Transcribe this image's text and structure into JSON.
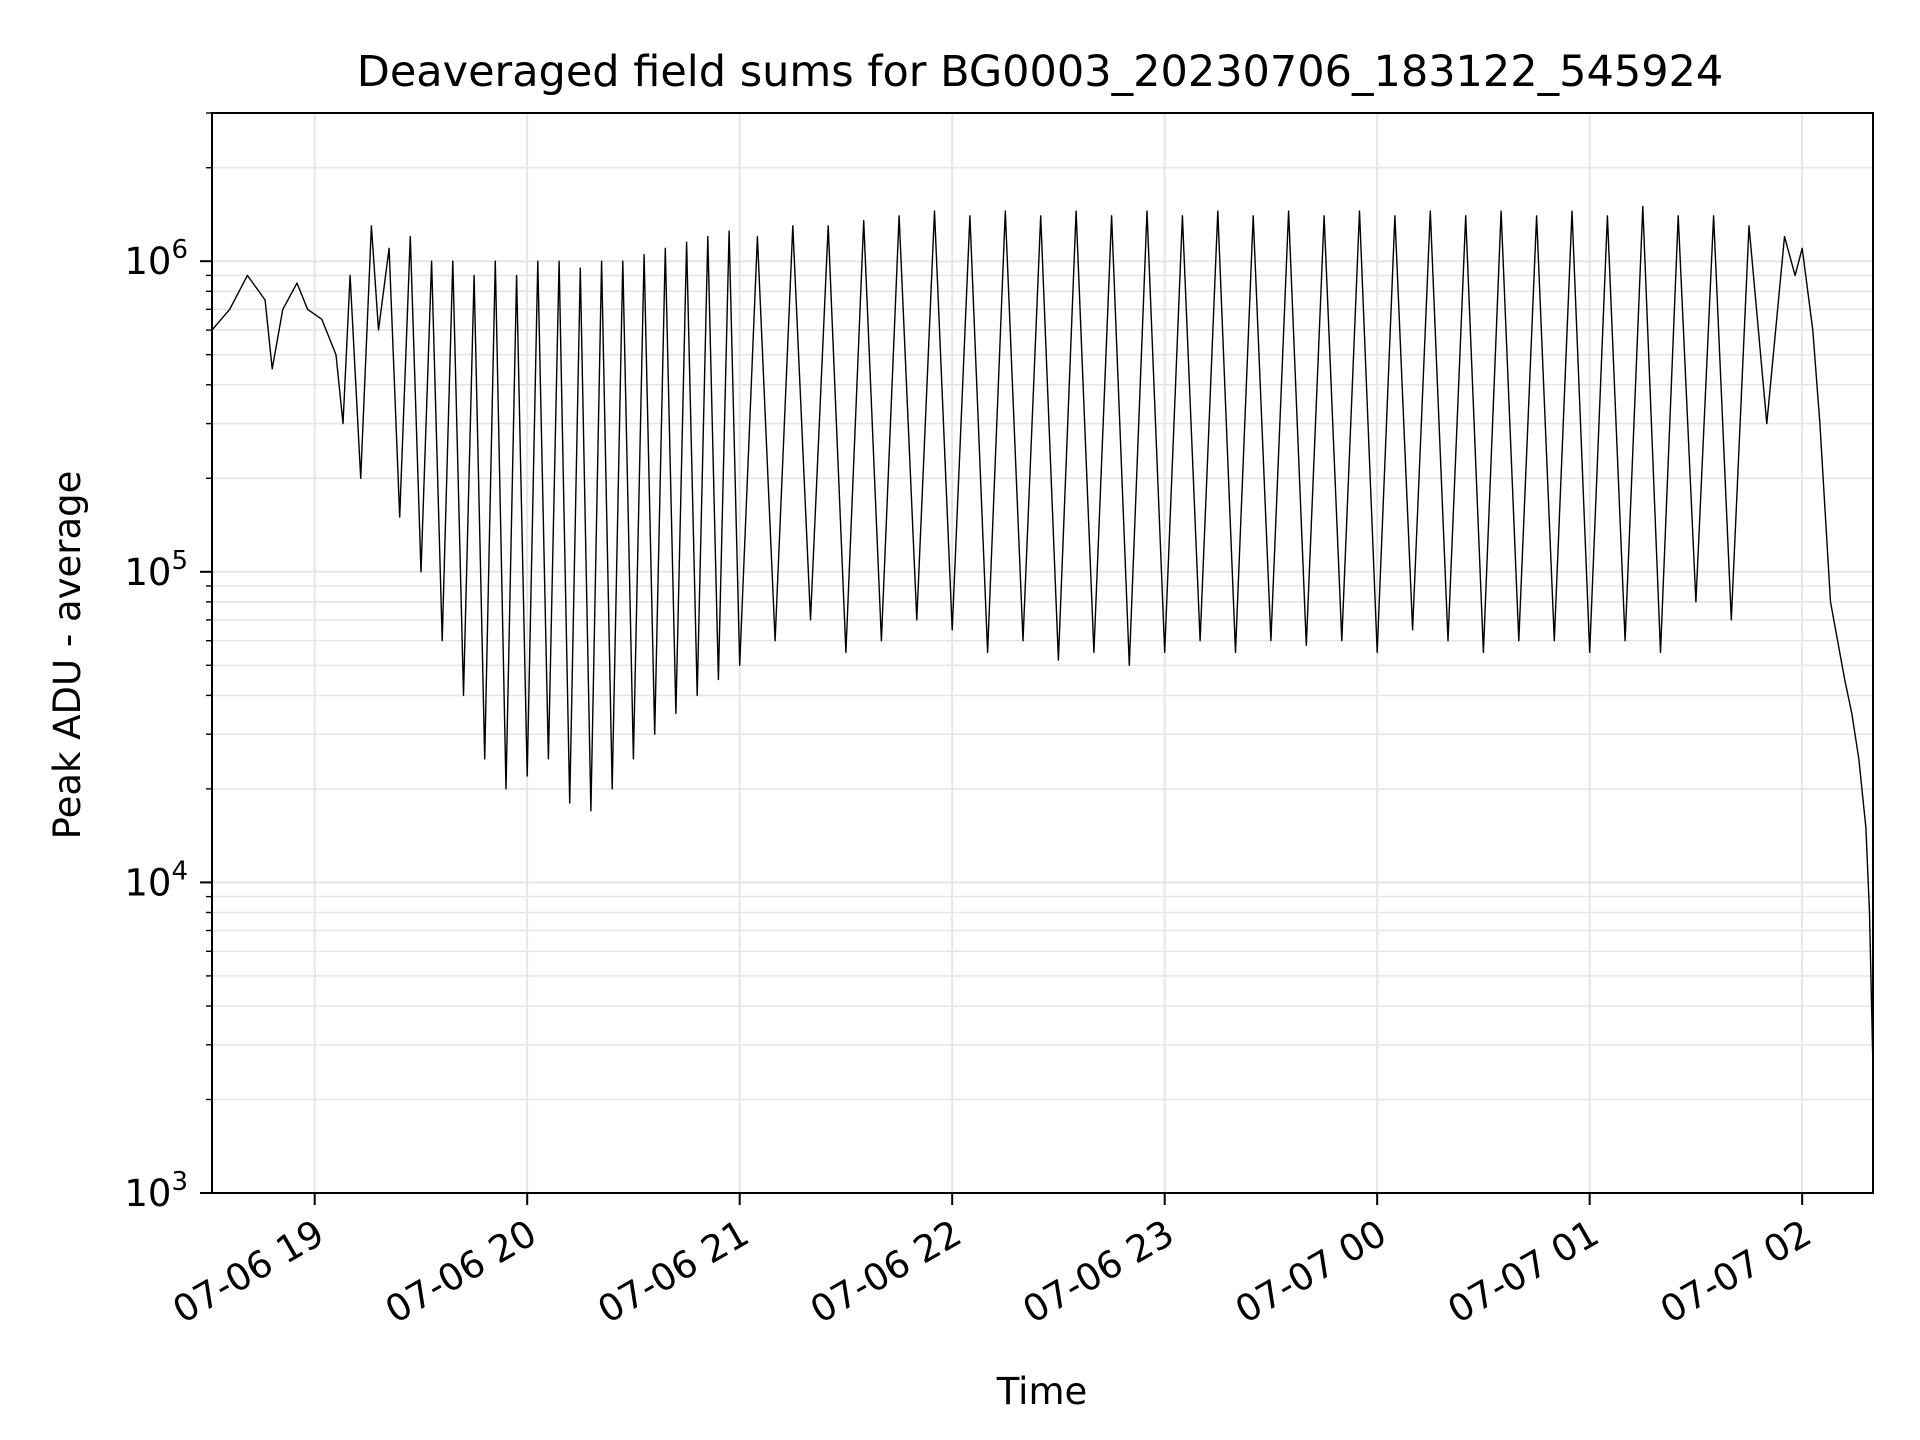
{
  "chart_data": {
    "type": "line",
    "title": "Deaveraged field sums for BG0003_20230706_183122_545924",
    "xlabel": "Time",
    "ylabel": "Peak ADU - average",
    "xscale": "time",
    "yscale": "log",
    "xlim": [
      "2023-07-06 18:31",
      "2023-07-07 02:20"
    ],
    "ylim": [
      1000,
      3000000
    ],
    "grid": true,
    "legend": "none",
    "line_color": "#000000",
    "grid_color": "#e6e6e6",
    "x_ticks": [
      {
        "label": "07-06 19",
        "value": "2023-07-06 19:00"
      },
      {
        "label": "07-06 20",
        "value": "2023-07-06 20:00"
      },
      {
        "label": "07-06 21",
        "value": "2023-07-06 21:00"
      },
      {
        "label": "07-06 22",
        "value": "2023-07-06 22:00"
      },
      {
        "label": "07-06 23",
        "value": "2023-07-06 23:00"
      },
      {
        "label": "07-07 00",
        "value": "2023-07-07 00:00"
      },
      {
        "label": "07-07 01",
        "value": "2023-07-07 01:00"
      },
      {
        "label": "07-07 02",
        "value": "2023-07-07 02:00"
      }
    ],
    "y_ticks": [
      {
        "base": "10",
        "exp": "3",
        "value": 1000
      },
      {
        "base": "10",
        "exp": "4",
        "value": 10000
      },
      {
        "base": "10",
        "exp": "5",
        "value": 100000
      },
      {
        "base": "10",
        "exp": "6",
        "value": 1000000
      }
    ],
    "series": [
      {
        "x": [
          "2023-07-06 18:31",
          "2023-07-06 18:36",
          "2023-07-06 18:41",
          "2023-07-06 18:46",
          "2023-07-06 18:48",
          "2023-07-06 18:51",
          "2023-07-06 18:55",
          "2023-07-06 18:58",
          "2023-07-06 19:02",
          "2023-07-06 19:06",
          "2023-07-06 19:08",
          "2023-07-06 19:10",
          "2023-07-06 19:13",
          "2023-07-06 19:16",
          "2023-07-06 19:18",
          "2023-07-06 19:21",
          "2023-07-06 19:24",
          "2023-07-06 19:27",
          "2023-07-06 19:30",
          "2023-07-06 19:33",
          "2023-07-06 19:36",
          "2023-07-06 19:39",
          "2023-07-06 19:42",
          "2023-07-06 19:45",
          "2023-07-06 19:48",
          "2023-07-06 19:51",
          "2023-07-06 19:54",
          "2023-07-06 19:57",
          "2023-07-06 20:00",
          "2023-07-06 20:03",
          "2023-07-06 20:06",
          "2023-07-06 20:09",
          "2023-07-06 20:12",
          "2023-07-06 20:15",
          "2023-07-06 20:18",
          "2023-07-06 20:21",
          "2023-07-06 20:24",
          "2023-07-06 20:27",
          "2023-07-06 20:30",
          "2023-07-06 20:33",
          "2023-07-06 20:36",
          "2023-07-06 20:39",
          "2023-07-06 20:42",
          "2023-07-06 20:45",
          "2023-07-06 20:48",
          "2023-07-06 20:51",
          "2023-07-06 20:54",
          "2023-07-06 20:57",
          "2023-07-06 21:00",
          "2023-07-06 21:05",
          "2023-07-06 21:10",
          "2023-07-06 21:15",
          "2023-07-06 21:20",
          "2023-07-06 21:25",
          "2023-07-06 21:30",
          "2023-07-06 21:35",
          "2023-07-06 21:40",
          "2023-07-06 21:45",
          "2023-07-06 21:50",
          "2023-07-06 21:55",
          "2023-07-06 22:00",
          "2023-07-06 22:05",
          "2023-07-06 22:10",
          "2023-07-06 22:15",
          "2023-07-06 22:20",
          "2023-07-06 22:25",
          "2023-07-06 22:30",
          "2023-07-06 22:35",
          "2023-07-06 22:40",
          "2023-07-06 22:45",
          "2023-07-06 22:50",
          "2023-07-06 22:55",
          "2023-07-06 23:00",
          "2023-07-06 23:05",
          "2023-07-06 23:10",
          "2023-07-06 23:15",
          "2023-07-06 23:20",
          "2023-07-06 23:25",
          "2023-07-06 23:30",
          "2023-07-06 23:35",
          "2023-07-06 23:40",
          "2023-07-06 23:45",
          "2023-07-06 23:50",
          "2023-07-06 23:55",
          "2023-07-07 00:00",
          "2023-07-07 00:05",
          "2023-07-07 00:10",
          "2023-07-07 00:15",
          "2023-07-07 00:20",
          "2023-07-07 00:25",
          "2023-07-07 00:30",
          "2023-07-07 00:35",
          "2023-07-07 00:40",
          "2023-07-07 00:45",
          "2023-07-07 00:50",
          "2023-07-07 00:55",
          "2023-07-07 01:00",
          "2023-07-07 01:05",
          "2023-07-07 01:10",
          "2023-07-07 01:15",
          "2023-07-07 01:20",
          "2023-07-07 01:25",
          "2023-07-07 01:30",
          "2023-07-07 01:35",
          "2023-07-07 01:40",
          "2023-07-07 01:45",
          "2023-07-07 01:50",
          "2023-07-07 01:55",
          "2023-07-07 01:58",
          "2023-07-07 02:00",
          "2023-07-07 02:03",
          "2023-07-07 02:05",
          "2023-07-07 02:08",
          "2023-07-07 02:10",
          "2023-07-07 02:12",
          "2023-07-07 02:14",
          "2023-07-07 02:16",
          "2023-07-07 02:18",
          "2023-07-07 02:19",
          "2023-07-07 02:20"
        ],
        "y": [
          600000,
          700000,
          900000,
          750000,
          450000,
          700000,
          850000,
          700000,
          650000,
          500000,
          300000,
          900000,
          200000,
          1300000,
          600000,
          1100000,
          150000,
          1200000,
          100000,
          1000000,
          60000,
          1000000,
          40000,
          900000,
          25000,
          1000000,
          20000,
          900000,
          22000,
          1000000,
          25000,
          1000000,
          18000,
          950000,
          17000,
          1000000,
          20000,
          1000000,
          25000,
          1050000,
          30000,
          1100000,
          35000,
          1150000,
          40000,
          1200000,
          45000,
          1250000,
          50000,
          1200000,
          60000,
          1300000,
          70000,
          1300000,
          55000,
          1350000,
          60000,
          1400000,
          70000,
          1450000,
          65000,
          1400000,
          55000,
          1450000,
          60000,
          1400000,
          52000,
          1450000,
          55000,
          1400000,
          50000,
          1450000,
          55000,
          1400000,
          60000,
          1450000,
          55000,
          1400000,
          60000,
          1450000,
          58000,
          1400000,
          60000,
          1450000,
          55000,
          1400000,
          65000,
          1450000,
          60000,
          1400000,
          55000,
          1450000,
          60000,
          1400000,
          60000,
          1450000,
          55000,
          1400000,
          60000,
          1500000,
          55000,
          1400000,
          80000,
          1400000,
          70000,
          1300000,
          300000,
          1200000,
          900000,
          1100000,
          600000,
          300000,
          80000,
          60000,
          45000,
          35000,
          25000,
          15000,
          8000,
          2500
        ]
      }
    ]
  }
}
